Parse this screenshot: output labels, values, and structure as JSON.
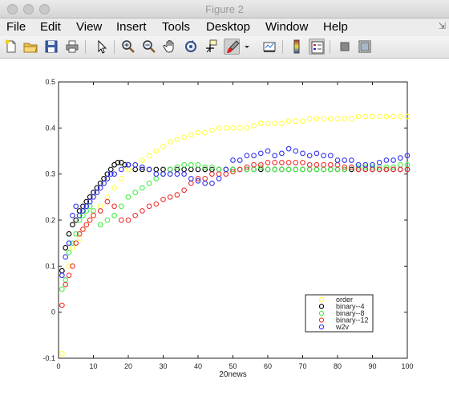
{
  "window": {
    "title": "Figure 2"
  },
  "menu": [
    "File",
    "Edit",
    "View",
    "Insert",
    "Tools",
    "Desktop",
    "Window",
    "Help"
  ],
  "toolbar": [
    "new-file-icon",
    "open-folder-icon",
    "save-icon",
    "print-icon",
    "pointer-icon",
    "zoom-in-icon",
    "zoom-out-icon",
    "pan-hand-icon",
    "rotate-3d-icon",
    "data-cursor-icon",
    "brush-icon",
    "brush-dropdown-icon",
    "link-plot-icon",
    "colorbar-icon",
    "legend-icon",
    "hide-plot-tools-icon",
    "show-plot-tools-icon"
  ],
  "chart_data": {
    "type": "scatter",
    "title": "",
    "xlabel": "20news",
    "ylabel": "",
    "xlim": [
      0,
      100
    ],
    "ylim": [
      -0.1,
      0.5
    ],
    "xticks": [
      0,
      10,
      20,
      30,
      40,
      50,
      60,
      70,
      80,
      90,
      100
    ],
    "yticks": [
      -0.1,
      0,
      0.1,
      0.2,
      0.3,
      0.4,
      0.5
    ],
    "marker": "circle",
    "legend_position": "lower-right",
    "series": [
      {
        "name": "order",
        "color": "#ffff44",
        "x": [
          1,
          2,
          3,
          4,
          5,
          6,
          7,
          8,
          9,
          10,
          12,
          14,
          16,
          18,
          20,
          22,
          24,
          26,
          28,
          30,
          32,
          34,
          36,
          38,
          40,
          42,
          44,
          46,
          48,
          50,
          52,
          54,
          56,
          58,
          60,
          62,
          64,
          66,
          68,
          70,
          72,
          74,
          76,
          78,
          80,
          82,
          84,
          86,
          88,
          90,
          92,
          94,
          96,
          98,
          100
        ],
        "y": [
          -0.09,
          0.06,
          0.1,
          0.14,
          0.15,
          0.16,
          0.18,
          0.19,
          0.2,
          0.21,
          0.23,
          0.25,
          0.27,
          0.29,
          0.31,
          0.32,
          0.33,
          0.34,
          0.35,
          0.36,
          0.37,
          0.375,
          0.38,
          0.385,
          0.39,
          0.39,
          0.395,
          0.4,
          0.4,
          0.4,
          0.4,
          0.4,
          0.405,
          0.41,
          0.41,
          0.41,
          0.41,
          0.415,
          0.415,
          0.415,
          0.42,
          0.42,
          0.42,
          0.42,
          0.42,
          0.42,
          0.42,
          0.425,
          0.425,
          0.425,
          0.425,
          0.425,
          0.425,
          0.425,
          0.425
        ]
      },
      {
        "name": "binary--4",
        "color": "#000000",
        "x": [
          1,
          2,
          3,
          4,
          5,
          6,
          7,
          8,
          9,
          10,
          11,
          12,
          13,
          14,
          15,
          16,
          17,
          18,
          19,
          20,
          22,
          24,
          26,
          28,
          30,
          32,
          34,
          36,
          38,
          40,
          42,
          44,
          46,
          48,
          50,
          52,
          54,
          56,
          58,
          60,
          62,
          64,
          66,
          68,
          70,
          72,
          74,
          76,
          78,
          80,
          82,
          84,
          86,
          88,
          90,
          92,
          94,
          96,
          98,
          100
        ],
        "y": [
          0.09,
          0.14,
          0.17,
          0.19,
          0.2,
          0.22,
          0.23,
          0.24,
          0.25,
          0.26,
          0.27,
          0.28,
          0.29,
          0.3,
          0.31,
          0.32,
          0.325,
          0.325,
          0.32,
          0.32,
          0.31,
          0.31,
          0.31,
          0.31,
          0.31,
          0.31,
          0.31,
          0.31,
          0.31,
          0.31,
          0.31,
          0.31,
          0.31,
          0.31,
          0.31,
          0.31,
          0.31,
          0.31,
          0.31,
          0.31,
          0.31,
          0.31,
          0.31,
          0.31,
          0.31,
          0.31,
          0.31,
          0.31,
          0.31,
          0.31,
          0.31,
          0.31,
          0.31,
          0.31,
          0.31,
          0.31,
          0.31,
          0.31,
          0.31,
          0.31
        ]
      },
      {
        "name": "binary--8",
        "color": "#44ee44",
        "x": [
          1,
          2,
          3,
          4,
          5,
          6,
          7,
          8,
          9,
          10,
          12,
          14,
          16,
          18,
          20,
          22,
          24,
          26,
          28,
          30,
          32,
          34,
          36,
          38,
          40,
          42,
          44,
          46,
          48,
          50,
          52,
          54,
          56,
          58,
          60,
          62,
          64,
          66,
          68,
          70,
          72,
          74,
          76,
          78,
          80,
          82,
          84,
          86,
          88,
          90,
          92,
          94,
          96,
          98,
          100
        ],
        "y": [
          0.05,
          0.07,
          0.13,
          0.15,
          0.17,
          0.2,
          0.21,
          0.22,
          0.23,
          0.22,
          0.19,
          0.2,
          0.21,
          0.23,
          0.25,
          0.26,
          0.27,
          0.28,
          0.29,
          0.3,
          0.31,
          0.315,
          0.32,
          0.32,
          0.32,
          0.315,
          0.315,
          0.31,
          0.31,
          0.31,
          0.31,
          0.31,
          0.31,
          0.315,
          0.31,
          0.31,
          0.31,
          0.31,
          0.31,
          0.31,
          0.31,
          0.31,
          0.31,
          0.31,
          0.31,
          0.31,
          0.315,
          0.315,
          0.315,
          0.315,
          0.315,
          0.315,
          0.315,
          0.32,
          0.32
        ]
      },
      {
        "name": "binary--12",
        "color": "#ee3333",
        "x": [
          1,
          2,
          3,
          4,
          5,
          6,
          7,
          8,
          9,
          10,
          12,
          14,
          16,
          18,
          20,
          22,
          24,
          26,
          28,
          30,
          32,
          34,
          36,
          38,
          40,
          42,
          44,
          46,
          48,
          50,
          52,
          54,
          56,
          58,
          60,
          62,
          64,
          66,
          68,
          70,
          72,
          74,
          76,
          78,
          80,
          82,
          84,
          86,
          88,
          90,
          92,
          94,
          96,
          98,
          100
        ],
        "y": [
          0.015,
          0.06,
          0.08,
          0.1,
          0.15,
          0.17,
          0.18,
          0.19,
          0.2,
          0.21,
          0.22,
          0.24,
          0.23,
          0.2,
          0.2,
          0.21,
          0.22,
          0.23,
          0.235,
          0.245,
          0.25,
          0.255,
          0.265,
          0.28,
          0.29,
          0.29,
          0.3,
          0.3,
          0.3,
          0.305,
          0.31,
          0.315,
          0.32,
          0.32,
          0.325,
          0.325,
          0.325,
          0.325,
          0.325,
          0.325,
          0.32,
          0.32,
          0.32,
          0.32,
          0.32,
          0.315,
          0.315,
          0.31,
          0.31,
          0.31,
          0.31,
          0.31,
          0.31,
          0.31,
          0.31
        ]
      },
      {
        "name": "w2v",
        "color": "#3333ee",
        "x": [
          1,
          2,
          3,
          4,
          5,
          6,
          7,
          8,
          9,
          10,
          11,
          12,
          13,
          14,
          15,
          16,
          18,
          20,
          22,
          24,
          26,
          28,
          30,
          32,
          34,
          36,
          38,
          40,
          42,
          44,
          46,
          48,
          50,
          52,
          54,
          56,
          58,
          60,
          62,
          64,
          66,
          68,
          70,
          72,
          74,
          76,
          78,
          80,
          82,
          84,
          86,
          88,
          90,
          92,
          94,
          96,
          98,
          100
        ],
        "y": [
          0.08,
          0.12,
          0.15,
          0.21,
          0.23,
          0.21,
          0.22,
          0.23,
          0.24,
          0.25,
          0.26,
          0.27,
          0.28,
          0.29,
          0.3,
          0.3,
          0.31,
          0.32,
          0.32,
          0.315,
          0.31,
          0.3,
          0.3,
          0.3,
          0.3,
          0.3,
          0.29,
          0.285,
          0.28,
          0.28,
          0.29,
          0.31,
          0.33,
          0.33,
          0.34,
          0.34,
          0.345,
          0.35,
          0.34,
          0.345,
          0.355,
          0.35,
          0.345,
          0.34,
          0.345,
          0.34,
          0.34,
          0.33,
          0.33,
          0.33,
          0.32,
          0.32,
          0.32,
          0.325,
          0.33,
          0.33,
          0.335,
          0.34
        ]
      }
    ]
  }
}
